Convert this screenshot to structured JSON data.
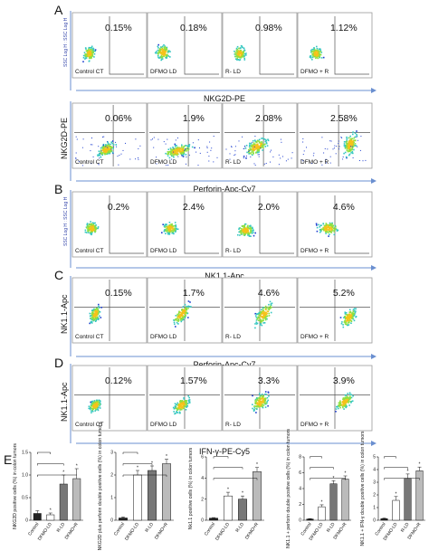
{
  "panels": [
    {
      "letter": "A",
      "y_label": "SSC Log H : SSC Log H",
      "x_label": "NKG2D-PE"
    },
    {
      "letter": "",
      "y_label": "NKG2D-PE",
      "x_label": "Perforin-Apc-Cy7"
    },
    {
      "letter": "B",
      "y_label": "SSC Log H : SSC Log H",
      "x_label": "NK1.1-Apc"
    },
    {
      "letter": "C",
      "y_label": "NK1.1-Apc",
      "x_label": "Perforin-Apc-Cy7"
    },
    {
      "letter": "D",
      "y_label": "NK1.1-Apc",
      "x_label": "IFN-γ-PE-Cy5"
    }
  ],
  "flow_rows": [
    {
      "percents": [
        "0.15%",
        "0.18%",
        "0.98%",
        "1.12%"
      ],
      "labels": [
        "Control CT",
        "DFMO LD",
        "R- LD",
        "DFMO + R"
      ]
    },
    {
      "percents": [
        "0.06%",
        "1.9%",
        "2.08%",
        "2.58%"
      ],
      "labels": [
        "Control CT",
        "DFMO LD",
        "R- LD",
        "DFMO + R"
      ]
    },
    {
      "percents": [
        "0.2%",
        "2.4%",
        "2.0%",
        "4.6%"
      ],
      "labels": [
        "Control CT",
        "DFMO LD",
        "R- LD",
        "DFMO + R"
      ]
    },
    {
      "percents": [
        "0.15%",
        "1.7%",
        "4.6%",
        "5.2%"
      ],
      "labels": [
        "Control CT",
        "DFMO LD",
        "R- LD",
        "DFMO + R"
      ]
    },
    {
      "percents": [
        "0.12%",
        "1.57%",
        "3.3%",
        "3.9%"
      ],
      "labels": [
        "Control CT",
        "DFMO LD",
        "R- LD",
        "DFMO + R"
      ]
    }
  ],
  "panel_e": {
    "letter": "E"
  },
  "colors": {
    "accent_line": "#6a8fd0",
    "scatter_low": "#1f3fd0",
    "scatter_mid": "#35c7c0",
    "scatter_high": "#8fe040",
    "scatter_core": "#f5c21a"
  },
  "chart_data": [
    {
      "type": "bar",
      "ylabel": "NKG2D positive cells (%) in colon tumors",
      "categories": [
        "Control",
        "DFMO-LD",
        "R-LD",
        "DFMO+R"
      ],
      "values": [
        0.15,
        0.12,
        0.8,
        0.92
      ],
      "errors": [
        0.06,
        0.04,
        0.2,
        0.22
      ],
      "ylim": [
        0,
        1.5
      ],
      "yticks": [
        "0",
        "0.5",
        "1.0",
        "1.5"
      ],
      "fills": [
        "#222222",
        "#ffffff",
        "#777777",
        "#bbbbbb"
      ]
    },
    {
      "type": "bar",
      "ylabel": "NKG2D plus perforin double positive cells (%) in colon tumors",
      "categories": [
        "Control",
        "DFMO-LD",
        "R-LD",
        "DFMO+R"
      ],
      "values": [
        0.1,
        2.0,
        2.2,
        2.5
      ],
      "errors": [
        0.05,
        0.2,
        0.2,
        0.2
      ],
      "ylim": [
        0,
        3
      ],
      "yticks": [
        "0",
        "1",
        "2",
        "3"
      ],
      "fills": [
        "#222222",
        "#ffffff",
        "#777777",
        "#bbbbbb"
      ]
    },
    {
      "type": "bar",
      "ylabel": "Nk1.1 positive cells (%) in colon tumors",
      "categories": [
        "Control",
        "DFMO-LD",
        "R-LD",
        "DFMO+R"
      ],
      "values": [
        0.2,
        2.3,
        2.0,
        4.6
      ],
      "errors": [
        0.05,
        0.35,
        0.3,
        0.4
      ],
      "ylim": [
        0,
        6
      ],
      "yticks": [
        "0",
        "2",
        "4",
        "6"
      ],
      "fills": [
        "#222222",
        "#ffffff",
        "#777777",
        "#bbbbbb"
      ]
    },
    {
      "type": "bar",
      "ylabel": "NK1.1 + perforin double positive cells (%) in colon tumors",
      "categories": [
        "Control",
        "DFMO-LD",
        "R-LD",
        "DFMO+R"
      ],
      "values": [
        0.15,
        1.7,
        4.6,
        5.2
      ],
      "errors": [
        0.05,
        0.25,
        0.4,
        0.4
      ],
      "ylim": [
        0,
        8
      ],
      "yticks": [
        "0",
        "2",
        "4",
        "6",
        "8"
      ],
      "fills": [
        "#222222",
        "#ffffff",
        "#777777",
        "#bbbbbb"
      ]
    },
    {
      "type": "bar",
      "ylabel": "NK1.1 + IFN-γ double positive cells (%) in colon tumors",
      "categories": [
        "Control",
        "DFMO-LD",
        "R-LD",
        "DFMO+R"
      ],
      "values": [
        0.12,
        1.57,
        3.3,
        3.9
      ],
      "errors": [
        0.05,
        0.3,
        0.35,
        0.3
      ],
      "ylim": [
        0,
        5
      ],
      "yticks": [
        "0",
        "1",
        "2",
        "3",
        "4",
        "5"
      ],
      "fills": [
        "#222222",
        "#ffffff",
        "#777777",
        "#bbbbbb"
      ]
    }
  ]
}
